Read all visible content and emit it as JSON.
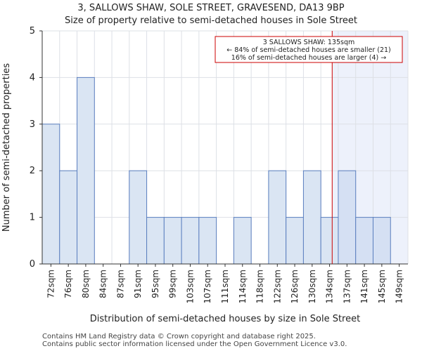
{
  "chart_data": {
    "type": "bar",
    "title": "3, SALLOWS SHAW, SOLE STREET, GRAVESEND, DA13 9BP",
    "subtitle": "Size of property relative to semi-detached houses in Sole Street",
    "xlabel": "Distribution of semi-detached houses by size in Sole Street",
    "ylabel": "Number of semi-detached properties",
    "categories": [
      "72sqm",
      "76sqm",
      "80sqm",
      "84sqm",
      "87sqm",
      "91sqm",
      "95sqm",
      "99sqm",
      "103sqm",
      "107sqm",
      "111sqm",
      "114sqm",
      "118sqm",
      "122sqm",
      "126sqm",
      "130sqm",
      "134sqm",
      "137sqm",
      "141sqm",
      "145sqm",
      "149sqm"
    ],
    "values": [
      3,
      2,
      4,
      0,
      0,
      2,
      1,
      1,
      1,
      1,
      0,
      1,
      0,
      2,
      1,
      2,
      1,
      2,
      1,
      1,
      0
    ],
    "ylim": [
      0,
      5
    ],
    "yticks": [
      0,
      1,
      2,
      3,
      4,
      5
    ],
    "grid": true,
    "marker": {
      "label_lines": [
        "3 SALLOWS SHAW: 135sqm",
        "← 84% of semi-detached houses are smaller (21)",
        "16% of semi-detached houses are larger (4) →"
      ],
      "value_sqm": 135,
      "color": "#cc0000"
    },
    "colors": {
      "bar_fill": "#dae5f3",
      "bar_stroke": "#5b7fbf",
      "bar_fill_highlight": "#d5e0f3",
      "shade": "#edf1fb",
      "grid": "#dde0e6",
      "axis": "#333333"
    }
  },
  "footer": {
    "line1": "Contains HM Land Registry data © Crown copyright and database right 2025.",
    "line2": "Contains public sector information licensed under the Open Government Licence v3.0."
  }
}
